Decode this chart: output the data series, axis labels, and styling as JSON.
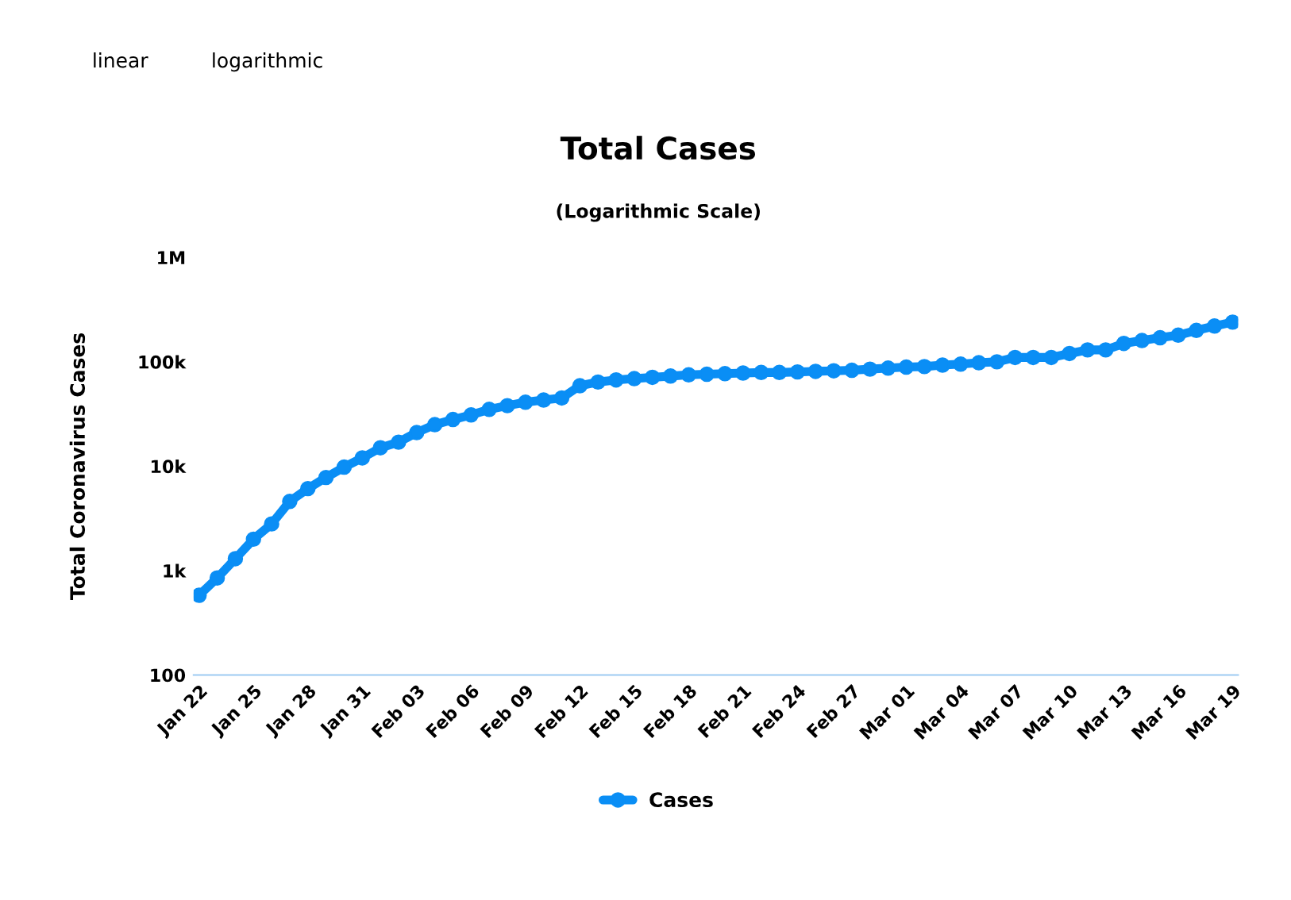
{
  "chart_data": {
    "type": "line",
    "title": "Total Cases",
    "subtitle": "(Logarithmic Scale)",
    "ylabel": "Total Coronavirus Cases",
    "annotations": [
      "linear",
      "logarithmic"
    ],
    "categories": [
      "Jan 22",
      null,
      null,
      "Jan 25",
      null,
      null,
      "Jan 28",
      null,
      null,
      "Jan 31",
      null,
      null,
      "Feb 03",
      null,
      null,
      "Feb 06",
      null,
      null,
      "Feb 09",
      null,
      null,
      "Feb 12",
      null,
      null,
      "Feb 15",
      null,
      null,
      "Feb 18",
      null,
      null,
      "Feb 21",
      null,
      null,
      "Feb 24",
      null,
      null,
      "Feb 27",
      null,
      null,
      "Mar 01",
      null,
      null,
      "Mar 04",
      null,
      null,
      "Mar 07",
      null,
      null,
      "Mar 10",
      null,
      null,
      "Mar 13",
      null,
      null,
      "Mar 16",
      null,
      null,
      "Mar 19"
    ],
    "series": [
      {
        "name": "Cases",
        "color": "#0a8ef5",
        "values": [
          580,
          850,
          1300,
          2000,
          2800,
          4600,
          6100,
          7800,
          9800,
          12000,
          15000,
          17000,
          21000,
          25000,
          28000,
          31000,
          35000,
          38000,
          41000,
          43000,
          45000,
          59000,
          64000,
          67000,
          69000,
          71000,
          73000,
          75000,
          76000,
          77000,
          78000,
          79000,
          79000,
          80000,
          81000,
          82000,
          83000,
          85000,
          87000,
          89000,
          90000,
          93000,
          95000,
          98000,
          100000,
          110000,
          110000,
          110000,
          120000,
          130000,
          130000,
          150000,
          160000,
          170000,
          180000,
          200000,
          220000,
          240000
        ]
      }
    ],
    "log": "y",
    "ylim": [
      100,
      1000000
    ],
    "yticks": [
      100,
      {
        "value": 1000,
        "label": "1k"
      },
      {
        "value": 10000,
        "label": "10k"
      },
      {
        "value": 100000,
        "label": "100k"
      },
      {
        "value": 1000000,
        "label": "1M"
      }
    ],
    "grid": false,
    "legend": "bottom",
    "marker": "circle",
    "line_style": "solid"
  }
}
